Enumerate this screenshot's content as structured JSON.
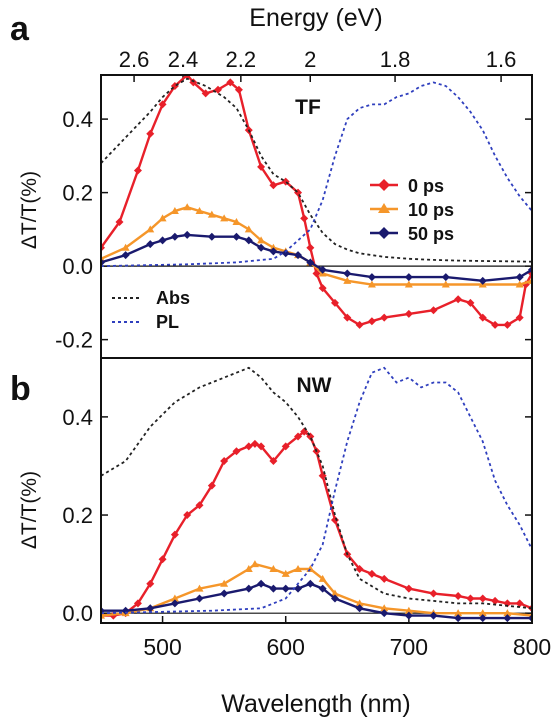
{
  "chart_data": [
    {
      "panel_label": "a",
      "type": "line",
      "title": "TF",
      "top_axis_label": "Energy (eV)",
      "top_ticks": [
        "2.6",
        "2.4",
        "2.2",
        "2",
        "1.8",
        "1.6"
      ],
      "top_tick_energies": [
        2.6,
        2.4,
        2.2,
        2.0,
        1.8,
        1.6
      ],
      "xlim": [
        450,
        800
      ],
      "ylim": [
        -0.25,
        0.52
      ],
      "ylabel": "ΔT/T(%)",
      "yticks": [
        "-0.2",
        "0.0",
        "0.2",
        "0.4"
      ],
      "ytick_values": [
        -0.2,
        0.0,
        0.2,
        0.4
      ],
      "legend_position": "right",
      "legend2_position": "bottom-left",
      "series": [
        {
          "name": "0 ps",
          "color": "#e8202a",
          "style": "solid-diamond",
          "x": [
            450,
            465,
            480,
            490,
            500,
            510,
            520,
            525,
            535,
            545,
            555,
            562,
            570,
            580,
            590,
            600,
            610,
            615,
            620,
            625,
            630,
            640,
            650,
            660,
            670,
            680,
            700,
            720,
            740,
            750,
            760,
            770,
            780,
            790,
            795,
            800
          ],
          "y": [
            0.05,
            0.12,
            0.26,
            0.36,
            0.44,
            0.49,
            0.52,
            0.5,
            0.47,
            0.48,
            0.5,
            0.48,
            0.37,
            0.27,
            0.22,
            0.23,
            0.2,
            0.13,
            0.05,
            -0.02,
            -0.06,
            -0.1,
            -0.14,
            -0.16,
            -0.15,
            -0.14,
            -0.13,
            -0.12,
            -0.09,
            -0.1,
            -0.14,
            -0.16,
            -0.16,
            -0.14,
            -0.05,
            -0.02
          ]
        },
        {
          "name": "10 ps",
          "color": "#f5962a",
          "style": "solid-triangle",
          "x": [
            450,
            470,
            490,
            500,
            510,
            520,
            530,
            540,
            550,
            560,
            570,
            580,
            590,
            600,
            610,
            620,
            630,
            650,
            670,
            700,
            730,
            760,
            790,
            800
          ],
          "y": [
            0.02,
            0.05,
            0.1,
            0.13,
            0.15,
            0.16,
            0.15,
            0.14,
            0.13,
            0.12,
            0.1,
            0.07,
            0.05,
            0.04,
            0.03,
            0.01,
            -0.02,
            -0.04,
            -0.05,
            -0.05,
            -0.05,
            -0.05,
            -0.05,
            -0.04
          ]
        },
        {
          "name": "50 ps",
          "color": "#1a1a6e",
          "style": "solid-diamond",
          "x": [
            450,
            470,
            490,
            500,
            510,
            520,
            540,
            560,
            570,
            580,
            590,
            600,
            610,
            620,
            630,
            650,
            670,
            700,
            730,
            760,
            790,
            800
          ],
          "y": [
            0.01,
            0.03,
            0.06,
            0.07,
            0.08,
            0.085,
            0.08,
            0.08,
            0.07,
            0.05,
            0.04,
            0.035,
            0.03,
            0.01,
            -0.01,
            -0.02,
            -0.03,
            -0.03,
            -0.03,
            -0.04,
            -0.03,
            -0.01
          ]
        },
        {
          "name": "Abs",
          "color": "#222222",
          "style": "dotted",
          "x": [
            450,
            470,
            490,
            500,
            510,
            520,
            535,
            550,
            560,
            570,
            580,
            590,
            600,
            610,
            620,
            630,
            640,
            650,
            660,
            670,
            680,
            700,
            720,
            740,
            760,
            780,
            800
          ],
          "y": [
            0.28,
            0.35,
            0.42,
            0.46,
            0.49,
            0.51,
            0.49,
            0.46,
            0.43,
            0.37,
            0.3,
            0.25,
            0.23,
            0.2,
            0.14,
            0.09,
            0.06,
            0.045,
            0.035,
            0.03,
            0.025,
            0.02,
            0.017,
            0.015,
            0.014,
            0.013,
            0.012
          ]
        },
        {
          "name": "PL",
          "color": "#2f3fbe",
          "style": "dotted",
          "x": [
            450,
            520,
            560,
            590,
            600,
            620,
            630,
            640,
            650,
            660,
            670,
            680,
            690,
            700,
            710,
            720,
            730,
            740,
            750,
            760,
            770,
            780,
            790,
            800
          ],
          "y": [
            0.0,
            0.005,
            0.01,
            0.02,
            0.04,
            0.1,
            0.18,
            0.3,
            0.4,
            0.43,
            0.44,
            0.44,
            0.46,
            0.47,
            0.49,
            0.5,
            0.49,
            0.46,
            0.42,
            0.37,
            0.3,
            0.24,
            0.19,
            0.15
          ]
        }
      ]
    },
    {
      "panel_label": "b",
      "type": "line",
      "title": "NW",
      "xlim": [
        450,
        800
      ],
      "ylim": [
        -0.02,
        0.52
      ],
      "xlabel": "Wavelength (nm)",
      "xticks": [
        "500",
        "600",
        "700",
        "800"
      ],
      "xtick_values": [
        500,
        600,
        700,
        800
      ],
      "ylabel": "ΔT/T(%)",
      "yticks": [
        "0.0",
        "0.2",
        "0.4"
      ],
      "ytick_values": [
        0.0,
        0.2,
        0.4
      ],
      "series": [
        {
          "name": "0 ps",
          "color": "#e8202a",
          "style": "solid-diamond",
          "x": [
            450,
            460,
            470,
            480,
            490,
            500,
            510,
            520,
            530,
            540,
            550,
            560,
            570,
            575,
            580,
            590,
            600,
            610,
            615,
            620,
            625,
            630,
            640,
            650,
            660,
            670,
            680,
            700,
            720,
            740,
            750,
            760,
            770,
            780,
            790,
            800
          ],
          "y": [
            -0.005,
            -0.005,
            0.0,
            0.02,
            0.06,
            0.11,
            0.16,
            0.2,
            0.22,
            0.26,
            0.31,
            0.33,
            0.34,
            0.345,
            0.34,
            0.31,
            0.34,
            0.36,
            0.37,
            0.36,
            0.33,
            0.28,
            0.19,
            0.12,
            0.09,
            0.08,
            0.07,
            0.05,
            0.04,
            0.035,
            0.03,
            0.03,
            0.025,
            0.02,
            0.02,
            0.01
          ]
        },
        {
          "name": "10 ps",
          "color": "#f5962a",
          "style": "solid-triangle",
          "x": [
            450,
            470,
            490,
            510,
            530,
            550,
            570,
            575,
            590,
            600,
            610,
            620,
            630,
            640,
            660,
            680,
            700,
            720,
            740,
            760,
            780,
            800
          ],
          "y": [
            -0.005,
            0.0,
            0.01,
            0.03,
            0.05,
            0.06,
            0.09,
            0.1,
            0.09,
            0.08,
            0.09,
            0.09,
            0.07,
            0.04,
            0.02,
            0.01,
            0.005,
            0.0,
            0.0,
            0.0,
            0.0,
            -0.005
          ]
        },
        {
          "name": "50 ps",
          "color": "#1a1a6e",
          "style": "solid-diamond",
          "x": [
            450,
            470,
            490,
            510,
            530,
            550,
            570,
            580,
            590,
            600,
            610,
            620,
            630,
            640,
            660,
            680,
            700,
            720,
            740,
            760,
            780,
            800
          ],
          "y": [
            0.005,
            0.005,
            0.01,
            0.02,
            0.03,
            0.04,
            0.05,
            0.06,
            0.05,
            0.05,
            0.05,
            0.06,
            0.05,
            0.03,
            0.01,
            0.0,
            -0.005,
            -0.005,
            -0.01,
            -0.01,
            -0.01,
            -0.01
          ]
        },
        {
          "name": "Abs",
          "color": "#222222",
          "style": "dotted",
          "x": [
            450,
            470,
            490,
            510,
            530,
            550,
            560,
            570,
            580,
            590,
            600,
            610,
            620,
            630,
            640,
            650,
            660,
            680,
            700,
            720,
            740,
            760,
            780,
            800
          ],
          "y": [
            0.28,
            0.31,
            0.38,
            0.43,
            0.46,
            0.48,
            0.49,
            0.5,
            0.48,
            0.45,
            0.43,
            0.4,
            0.36,
            0.3,
            0.2,
            0.12,
            0.07,
            0.04,
            0.03,
            0.025,
            0.02,
            0.02,
            0.015,
            0.01
          ]
        },
        {
          "name": "PL",
          "color": "#2f3fbe",
          "style": "dotted",
          "x": [
            450,
            540,
            580,
            600,
            610,
            620,
            630,
            640,
            650,
            660,
            670,
            680,
            690,
            700,
            710,
            720,
            730,
            740,
            750,
            760,
            770,
            780,
            790,
            800
          ],
          "y": [
            0.0,
            0.005,
            0.01,
            0.03,
            0.06,
            0.09,
            0.14,
            0.25,
            0.35,
            0.43,
            0.49,
            0.5,
            0.47,
            0.48,
            0.46,
            0.47,
            0.47,
            0.45,
            0.4,
            0.35,
            0.27,
            0.22,
            0.18,
            0.13
          ]
        }
      ]
    }
  ]
}
